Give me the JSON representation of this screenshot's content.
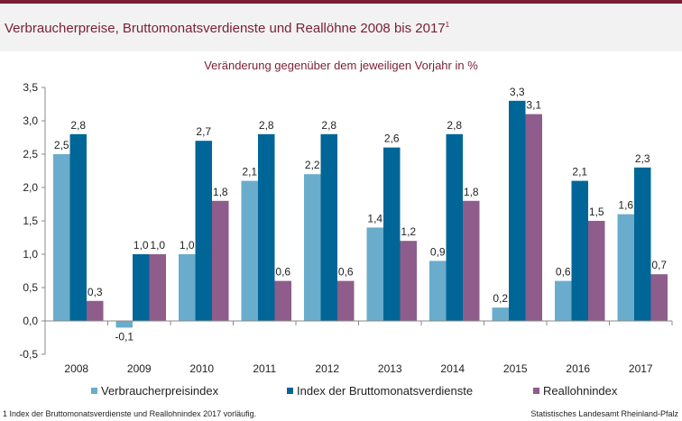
{
  "title": "Verbraucherpreise, Bruttomonatsverdienste und Reallöhne 2008 bis 2017",
  "title_sup": "1",
  "subtitle": "Veränderung gegenüber dem jeweiligen Vorjahr in %",
  "footnote": "1 Index der Bruttomonatsverdienste und Reallohnindex 2017 vorläufig.",
  "source": "Statistisches Landesamt Rheinland-Pfalz",
  "colors": {
    "accent": "#7a1f35",
    "header_bg": "#f2f2f2"
  },
  "chart_data": {
    "type": "bar",
    "categories": [
      "2008",
      "2009",
      "2010",
      "2011",
      "2012",
      "2013",
      "2014",
      "2015",
      "2016",
      "2017"
    ],
    "series": [
      {
        "name": "Verbraucherpreisindex",
        "color": "#6aaccb",
        "values": [
          2.5,
          -0.1,
          1.0,
          2.1,
          2.2,
          1.4,
          0.9,
          0.2,
          0.6,
          1.6
        ]
      },
      {
        "name": "Index der Bruttomonatsverdienste",
        "color": "#006697",
        "values": [
          2.8,
          1.0,
          2.7,
          2.8,
          2.8,
          2.6,
          2.8,
          3.3,
          2.1,
          2.3
        ]
      },
      {
        "name": "Reallohnindex",
        "color": "#8e5d8b",
        "values": [
          0.3,
          1.0,
          1.8,
          0.6,
          0.6,
          1.2,
          1.8,
          3.1,
          1.5,
          0.7
        ]
      }
    ],
    "ylim": [
      -0.5,
      3.5
    ],
    "yticks": [
      "-0,5",
      "0,0",
      "0,5",
      "1,0",
      "1,5",
      "2,0",
      "2,5",
      "3,0",
      "3,5"
    ],
    "decimal_separator": ",",
    "grid": false,
    "legend_position": "bottom"
  }
}
